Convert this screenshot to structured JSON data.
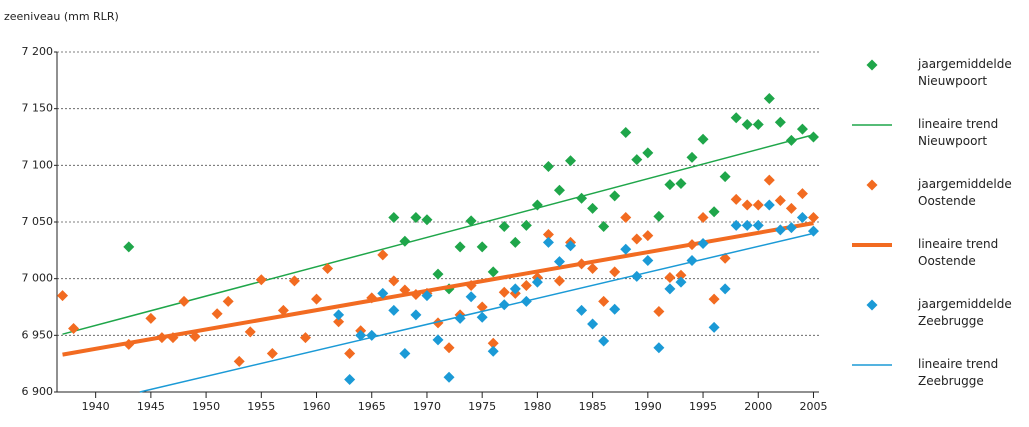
{
  "chart_data": {
    "type": "scatter",
    "y_label": "zeeniveau (mm RLR)",
    "xlim": [
      1936.5,
      2005.5
    ],
    "ylim": [
      6900,
      7200
    ],
    "xticks": [
      1940,
      1945,
      1950,
      1955,
      1960,
      1965,
      1970,
      1975,
      1980,
      1985,
      1990,
      1995,
      2000,
      2005
    ],
    "yticks": [
      {
        "value": 6900,
        "label": "6 900"
      },
      {
        "value": 6950,
        "label": "6 950"
      },
      {
        "value": 7000,
        "label": "7 000"
      },
      {
        "value": 7050,
        "label": "7 050"
      },
      {
        "value": 7100,
        "label": "7 100"
      },
      {
        "value": 7150,
        "label": "7 150"
      },
      {
        "value": 7200,
        "label": "7 200"
      }
    ],
    "grid": true,
    "series": [
      {
        "name": "jaargemiddelde Nieuwpoort",
        "type": "scatter",
        "color": "#1fa64a",
        "x": [
          1943,
          1967,
          1968,
          1969,
          1970,
          1971,
          1972,
          1973,
          1974,
          1975,
          1976,
          1977,
          1978,
          1979,
          1980,
          1981,
          1982,
          1983,
          1984,
          1985,
          1986,
          1987,
          1988,
          1989,
          1990,
          1991,
          1992,
          1993,
          1994,
          1995,
          1996,
          1997,
          1998,
          1999,
          2000,
          2001,
          2002,
          2003,
          2004,
          2005
        ],
        "values": [
          7028,
          7054,
          7033,
          7054,
          7052,
          7004,
          6991,
          7028,
          7051,
          7028,
          7006,
          7046,
          7032,
          7047,
          7065,
          7099,
          7078,
          7104,
          7071,
          7062,
          7046,
          7073,
          7129,
          7105,
          7111,
          7055,
          7083,
          7084,
          7107,
          7123,
          7059,
          7090,
          7142,
          7136,
          7136,
          7159,
          7138,
          7122,
          7132,
          7125
        ]
      },
      {
        "name": "lineaire trend Nieuwpoort",
        "type": "line",
        "color": "#1fa64a",
        "line_width": 1.5,
        "x": [
          1937,
          2005
        ],
        "values": [
          6951,
          7127
        ]
      },
      {
        "name": "jaargemiddelde Oostende",
        "type": "scatter",
        "color": "#f26b21",
        "x": [
          1937,
          1938,
          1943,
          1945,
          1946,
          1947,
          1948,
          1949,
          1951,
          1952,
          1953,
          1954,
          1955,
          1956,
          1957,
          1958,
          1959,
          1960,
          1961,
          1962,
          1963,
          1964,
          1965,
          1966,
          1967,
          1968,
          1969,
          1970,
          1971,
          1972,
          1973,
          1974,
          1975,
          1976,
          1977,
          1978,
          1979,
          1980,
          1981,
          1982,
          1983,
          1984,
          1985,
          1986,
          1987,
          1988,
          1989,
          1990,
          1991,
          1992,
          1993,
          1994,
          1995,
          1996,
          1997,
          1998,
          1999,
          2000,
          2001,
          2002,
          2003,
          2004,
          2005
        ],
        "values": [
          6985,
          6956,
          6942,
          6965,
          6948,
          6948,
          6980,
          6949,
          6969,
          6980,
          6927,
          6953,
          6999,
          6934,
          6972,
          6998,
          6948,
          6982,
          7009,
          6962,
          6934,
          6954,
          6983,
          7021,
          6998,
          6990,
          6986,
          6987,
          6961,
          6939,
          6968,
          6994,
          6975,
          6943,
          6988,
          6987,
          6994,
          7001,
          7039,
          6998,
          7032,
          7013,
          7009,
          6980,
          7006,
          7054,
          7035,
          7038,
          6971,
          7001,
          7003,
          7030,
          7054,
          6982,
          7018,
          7070,
          7065,
          7065,
          7087,
          7069,
          7062,
          7075,
          7054
        ]
      },
      {
        "name": "lineaire trend Oostende",
        "type": "line",
        "color": "#f26b21",
        "line_width": 4,
        "x": [
          1937,
          2005
        ],
        "values": [
          6933,
          7049
        ]
      },
      {
        "name": "jaargemiddelde Zeebrugge",
        "type": "scatter",
        "color": "#1b9ad6",
        "x": [
          1962,
          1963,
          1964,
          1965,
          1966,
          1967,
          1968,
          1969,
          1970,
          1971,
          1972,
          1973,
          1974,
          1975,
          1976,
          1977,
          1978,
          1979,
          1980,
          1981,
          1982,
          1983,
          1984,
          1985,
          1986,
          1987,
          1988,
          1989,
          1990,
          1991,
          1992,
          1993,
          1994,
          1995,
          1996,
          1997,
          1998,
          1999,
          2000,
          2001,
          2002,
          2003,
          2004,
          2005
        ],
        "values": [
          6968,
          6911,
          6950,
          6950,
          6987,
          6972,
          6934,
          6968,
          6985,
          6946,
          6913,
          6965,
          6984,
          6966,
          6936,
          6977,
          6991,
          6980,
          6997,
          7032,
          7015,
          7029,
          6972,
          6960,
          6945,
          6973,
          7026,
          7002,
          7016,
          6939,
          6991,
          6997,
          7016,
          7031,
          6957,
          6991,
          7047,
          7047,
          7047,
          7065,
          7043,
          7045,
          7054,
          7042
        ]
      },
      {
        "name": "lineaire trend Zeebrugge",
        "type": "line",
        "color": "#1b9ad6",
        "line_width": 1.5,
        "x": [
          1944,
          2005
        ],
        "values": [
          6900,
          7040
        ]
      }
    ]
  }
}
